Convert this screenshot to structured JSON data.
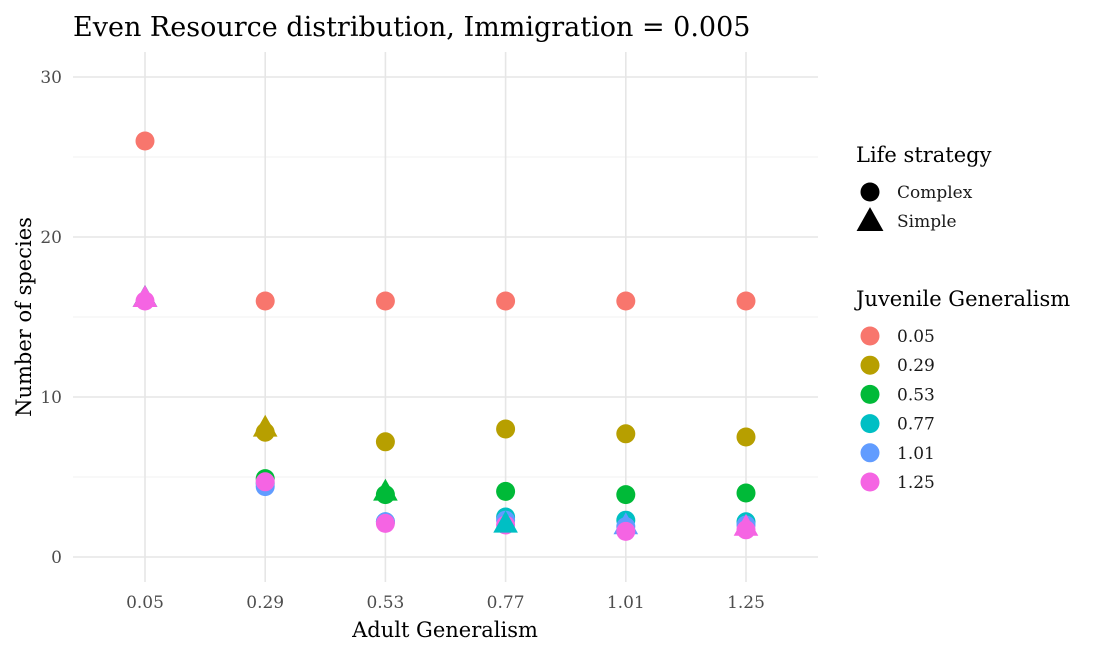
{
  "chart_data": {
    "type": "scatter",
    "title": "Even Resource distribution, Immigration = 0.005",
    "xlabel": "Adult Generalism",
    "ylabel": "Number of species",
    "categories": [
      "0.05",
      "0.29",
      "0.53",
      "0.77",
      "1.01",
      "1.25"
    ],
    "ylim": [
      -1.5,
      30.5
    ],
    "yticks": [
      0,
      10,
      20,
      30
    ],
    "grid": true,
    "legend_position": "right",
    "shape_legend": {
      "title": "Life strategy",
      "items": [
        {
          "label": "Complex",
          "shape": "circle"
        },
        {
          "label": "Simple",
          "shape": "triangle"
        }
      ]
    },
    "color_legend": {
      "title": "Juvenile Generalism",
      "items": [
        {
          "label": "0.05",
          "color": "#F8766D"
        },
        {
          "label": "0.29",
          "color": "#B79F00"
        },
        {
          "label": "0.53",
          "color": "#00BA38"
        },
        {
          "label": "0.77",
          "color": "#00BFC4"
        },
        {
          "label": "1.01",
          "color": "#619CFF"
        },
        {
          "label": "1.25",
          "color": "#F564E3"
        }
      ]
    },
    "points": [
      {
        "x": "0.05",
        "juvenile": "0.05",
        "strategy": "Simple",
        "y": 16.2
      },
      {
        "x": "0.05",
        "juvenile": "0.29",
        "strategy": "Simple",
        "y": 16.2
      },
      {
        "x": "0.05",
        "juvenile": "0.53",
        "strategy": "Simple",
        "y": 16.2
      },
      {
        "x": "0.05",
        "juvenile": "0.77",
        "strategy": "Simple",
        "y": 16.2
      },
      {
        "x": "0.05",
        "juvenile": "1.01",
        "strategy": "Simple",
        "y": 16.2
      },
      {
        "x": "0.05",
        "juvenile": "1.25",
        "strategy": "Simple",
        "y": 16.2
      },
      {
        "x": "0.05",
        "juvenile": "1.25",
        "strategy": "Complex",
        "y": 16.0
      },
      {
        "x": "0.05",
        "juvenile": "0.05",
        "strategy": "Complex",
        "y": 26.0
      },
      {
        "x": "0.29",
        "juvenile": "0.29",
        "strategy": "Simple",
        "y": 8.1
      },
      {
        "x": "0.29",
        "juvenile": "0.29",
        "strategy": "Complex",
        "y": 7.8
      },
      {
        "x": "0.29",
        "juvenile": "0.53",
        "strategy": "Complex",
        "y": 4.9
      },
      {
        "x": "0.29",
        "juvenile": "0.77",
        "strategy": "Complex",
        "y": 4.6
      },
      {
        "x": "0.29",
        "juvenile": "1.01",
        "strategy": "Complex",
        "y": 4.4
      },
      {
        "x": "0.29",
        "juvenile": "1.25",
        "strategy": "Complex",
        "y": 4.7
      },
      {
        "x": "0.29",
        "juvenile": "0.05",
        "strategy": "Complex",
        "y": 16.0
      },
      {
        "x": "0.53",
        "juvenile": "0.05",
        "strategy": "Complex",
        "y": 16.0
      },
      {
        "x": "0.53",
        "juvenile": "0.29",
        "strategy": "Complex",
        "y": 7.2
      },
      {
        "x": "0.53",
        "juvenile": "0.53",
        "strategy": "Simple",
        "y": 4.1
      },
      {
        "x": "0.53",
        "juvenile": "0.53",
        "strategy": "Complex",
        "y": 3.9
      },
      {
        "x": "0.53",
        "juvenile": "0.77",
        "strategy": "Complex",
        "y": 2.2
      },
      {
        "x": "0.53",
        "juvenile": "1.01",
        "strategy": "Complex",
        "y": 2.2
      },
      {
        "x": "0.53",
        "juvenile": "1.25",
        "strategy": "Complex",
        "y": 2.1
      },
      {
        "x": "0.77",
        "juvenile": "0.05",
        "strategy": "Complex",
        "y": 16.0
      },
      {
        "x": "0.77",
        "juvenile": "0.29",
        "strategy": "Complex",
        "y": 8.0
      },
      {
        "x": "0.77",
        "juvenile": "0.53",
        "strategy": "Complex",
        "y": 4.1
      },
      {
        "x": "0.77",
        "juvenile": "0.77",
        "strategy": "Complex",
        "y": 2.5
      },
      {
        "x": "0.77",
        "juvenile": "1.01",
        "strategy": "Complex",
        "y": 2.3
      },
      {
        "x": "0.77",
        "juvenile": "1.25",
        "strategy": "Complex",
        "y": 2.0
      },
      {
        "x": "0.77",
        "juvenile": "0.77",
        "strategy": "Simple",
        "y": 2.1
      },
      {
        "x": "1.01",
        "juvenile": "0.05",
        "strategy": "Complex",
        "y": 16.0
      },
      {
        "x": "1.01",
        "juvenile": "0.29",
        "strategy": "Complex",
        "y": 7.7
      },
      {
        "x": "1.01",
        "juvenile": "0.53",
        "strategy": "Complex",
        "y": 3.9
      },
      {
        "x": "1.01",
        "juvenile": "0.77",
        "strategy": "Complex",
        "y": 2.3
      },
      {
        "x": "1.01",
        "juvenile": "1.01",
        "strategy": "Simple",
        "y": 2.0
      },
      {
        "x": "1.01",
        "juvenile": "1.01",
        "strategy": "Complex",
        "y": 1.9
      },
      {
        "x": "1.01",
        "juvenile": "1.25",
        "strategy": "Complex",
        "y": 1.6
      },
      {
        "x": "1.25",
        "juvenile": "0.05",
        "strategy": "Complex",
        "y": 16.0
      },
      {
        "x": "1.25",
        "juvenile": "0.29",
        "strategy": "Complex",
        "y": 7.5
      },
      {
        "x": "1.25",
        "juvenile": "0.53",
        "strategy": "Complex",
        "y": 4.0
      },
      {
        "x": "1.25",
        "juvenile": "0.77",
        "strategy": "Complex",
        "y": 2.2
      },
      {
        "x": "1.25",
        "juvenile": "1.01",
        "strategy": "Complex",
        "y": 2.0
      },
      {
        "x": "1.25",
        "juvenile": "1.25",
        "strategy": "Simple",
        "y": 1.9
      },
      {
        "x": "1.25",
        "juvenile": "1.25",
        "strategy": "Complex",
        "y": 1.7
      }
    ]
  }
}
